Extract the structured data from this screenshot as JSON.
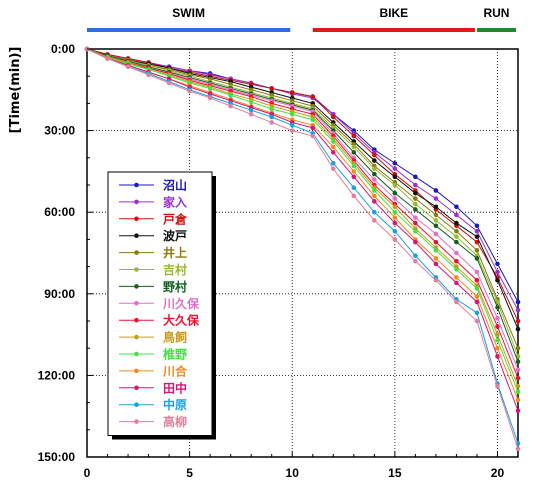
{
  "chart_data": {
    "type": "line",
    "title": "",
    "xlabel": "",
    "ylabel": "[Time(min)]",
    "xlim": [
      0,
      21
    ],
    "ylim": [
      0,
      150
    ],
    "y_inverted": true,
    "grid": true,
    "legend_position": "lower-left",
    "xticks": [
      0,
      5,
      10,
      15,
      20
    ],
    "xtick_labels": [
      "0",
      "5",
      "10",
      "15",
      "20"
    ],
    "yticks": [
      0,
      30,
      60,
      90,
      120,
      150
    ],
    "ytick_labels": [
      "0:00",
      "30:00",
      "60:00",
      "90:00",
      "120:00",
      "150:00"
    ],
    "segments": [
      {
        "label": "SWIM",
        "from": 0,
        "to": 10,
        "color": "#2c6fe0"
      },
      {
        "label": "BIKE",
        "from": 11,
        "to": 19,
        "color": "#e01818"
      },
      {
        "label": "RUN",
        "from": 19,
        "to": 21,
        "color": "#1d8a2e"
      }
    ],
    "x": [
      0,
      1,
      2,
      3,
      4,
      5,
      6,
      7,
      8,
      9,
      10,
      11,
      12,
      13,
      14,
      15,
      16,
      17,
      18,
      19,
      20,
      21
    ],
    "series": [
      {
        "name": "沼山",
        "color": "#1a1ab8",
        "values": [
          0,
          2,
          3.5,
          5,
          6.5,
          8,
          9,
          11,
          12.5,
          14.5,
          16,
          17.5,
          24,
          30,
          37,
          42,
          47,
          52,
          58,
          65,
          79,
          93
        ]
      },
      {
        "name": "家入",
        "color": "#9b2fd0",
        "values": [
          0,
          2,
          3.5,
          5,
          6.5,
          8,
          9.5,
          11,
          12.5,
          14.5,
          16.5,
          18,
          24,
          31,
          38,
          44,
          50,
          55,
          61,
          67,
          82,
          96
        ]
      },
      {
        "name": "戸倉",
        "color": "#cc1111",
        "values": [
          0,
          2,
          3.5,
          5,
          7,
          8.5,
          10,
          11.5,
          13,
          14.5,
          16,
          17.5,
          25,
          32,
          39,
          46,
          52,
          59,
          65,
          71,
          84,
          100
        ]
      },
      {
        "name": "波戸",
        "color": "#111111",
        "values": [
          0,
          2.5,
          4,
          5.5,
          7,
          9,
          10.5,
          12,
          14,
          16,
          18,
          20,
          27,
          34,
          41,
          47,
          53,
          58,
          64,
          69,
          85,
          103
        ]
      },
      {
        "name": "井上",
        "color": "#8a7a10",
        "values": [
          0,
          2.5,
          4,
          6,
          7.5,
          9.5,
          11,
          13,
          15,
          17,
          19,
          21,
          28,
          35,
          43,
          49,
          55,
          61,
          67,
          74,
          92,
          110
        ]
      },
      {
        "name": "吉村",
        "color": "#98b830",
        "values": [
          0,
          2.5,
          4.5,
          6,
          8,
          10,
          12,
          14,
          16,
          18,
          20,
          22,
          29,
          36,
          44,
          50,
          57,
          63,
          69,
          76,
          93,
          113
        ]
      },
      {
        "name": "野村",
        "color": "#15601f",
        "values": [
          0,
          2.5,
          4.5,
          6.5,
          8.5,
          10.5,
          12.5,
          14.5,
          16.5,
          18.5,
          20.5,
          22.5,
          30,
          38,
          46,
          53,
          59,
          65,
          71,
          77,
          95,
          115
        ]
      },
      {
        "name": "川久保",
        "color": "#e070c8",
        "values": [
          0,
          3,
          5,
          7,
          9,
          11,
          13,
          15,
          17,
          19,
          21,
          23,
          31,
          40,
          48,
          55,
          62,
          68,
          75,
          82,
          99,
          118
        ]
      },
      {
        "name": "大久保",
        "color": "#ee1133",
        "values": [
          0,
          3,
          5,
          7,
          9,
          11.5,
          13.5,
          15.5,
          17.5,
          20,
          22,
          24,
          32,
          41,
          50,
          57,
          64,
          71,
          78,
          85,
          102,
          121
        ]
      },
      {
        "name": "鳥飼",
        "color": "#c99a1a",
        "values": [
          0,
          3,
          5,
          7.5,
          9.5,
          12,
          14,
          16.5,
          18.5,
          21,
          23,
          25,
          33,
          42,
          51,
          58,
          66,
          73,
          80,
          87,
          105,
          124
        ]
      },
      {
        "name": "椎野",
        "color": "#44e044",
        "values": [
          0,
          3,
          5.5,
          7.5,
          10,
          12.5,
          14.5,
          17,
          19.5,
          22,
          24,
          26,
          34,
          43,
          52,
          60,
          67,
          74,
          81,
          88,
          107,
          126
        ]
      },
      {
        "name": "川合",
        "color": "#f08a1a",
        "values": [
          0,
          3,
          6,
          8.5,
          11,
          13.5,
          16,
          18.5,
          21,
          23.5,
          26,
          28,
          36,
          45,
          54,
          62,
          70,
          77,
          84,
          91,
          110,
          129
        ]
      },
      {
        "name": "田中",
        "color": "#d6157a",
        "values": [
          0,
          3.5,
          6,
          8.5,
          11,
          14,
          16.5,
          19,
          21.5,
          24,
          27,
          29,
          38,
          47,
          56,
          64,
          71,
          79,
          86,
          93,
          113,
          133
        ]
      },
      {
        "name": "中原",
        "color": "#1aa0e0",
        "values": [
          0,
          3.5,
          6.5,
          9,
          12,
          15,
          17.5,
          20,
          22.5,
          25,
          28,
          31,
          42,
          51,
          60,
          67,
          76,
          84,
          92,
          97,
          123,
          145
        ]
      },
      {
        "name": "高柳",
        "color": "#e0809a",
        "values": [
          0,
          3.5,
          6.5,
          9.5,
          12.5,
          15.5,
          18,
          21,
          24,
          27,
          30,
          32,
          44,
          54,
          63,
          70,
          78,
          85,
          93,
          100,
          124,
          147
        ]
      }
    ]
  }
}
